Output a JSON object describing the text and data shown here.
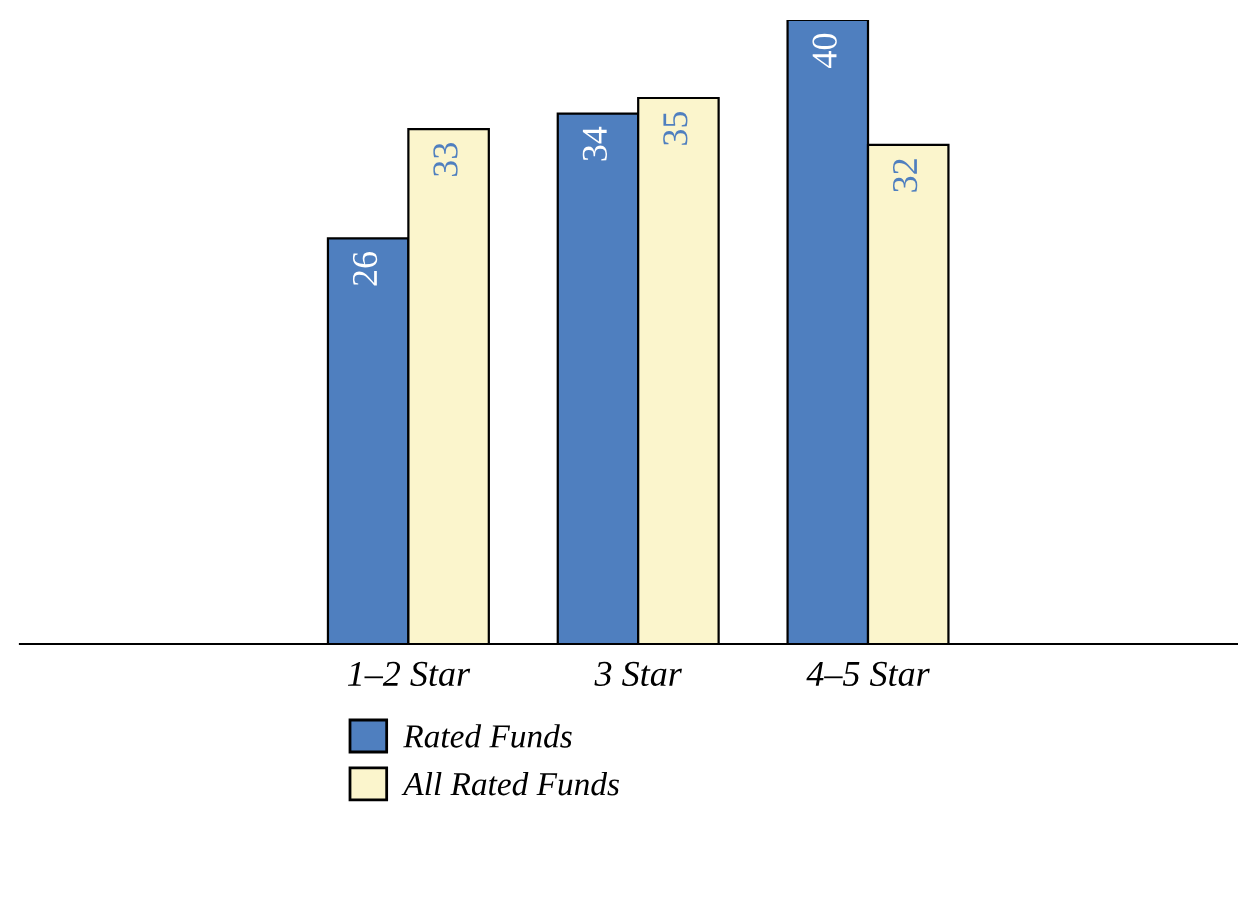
{
  "chart_data": {
    "type": "bar",
    "categories": [
      "1–2 Star",
      "3 Star",
      "4–5 Star"
    ],
    "series": [
      {
        "name": "Rated Funds",
        "color": "#4f7fbf",
        "values": [
          26,
          34,
          40
        ]
      },
      {
        "name": "All Rated Funds",
        "color": "#fbf5cc",
        "values": [
          33,
          35,
          32
        ]
      }
    ],
    "data_labels": true,
    "legend": "bottom",
    "grid": false
  }
}
